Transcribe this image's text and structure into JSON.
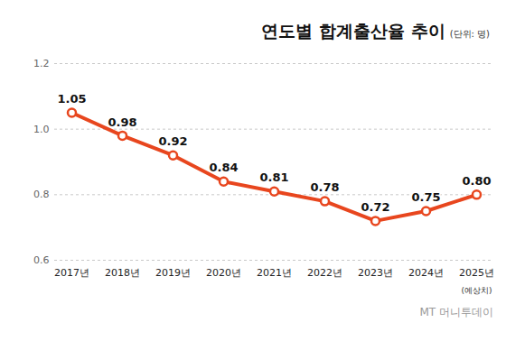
{
  "chart_data": {
    "type": "line",
    "title": "연도별 합계출산율 추이",
    "subtitle": "(단위: 명)",
    "categories": [
      "2017년",
      "2018년",
      "2019년",
      "2020년",
      "2021년",
      "2022년",
      "2023년",
      "2024년",
      "2025년"
    ],
    "values": [
      1.05,
      0.98,
      0.92,
      0.84,
      0.81,
      0.78,
      0.72,
      0.75,
      0.8
    ],
    "value_labels": [
      "1.05",
      "0.98",
      "0.92",
      "0.84",
      "0.81",
      "0.78",
      "0.72",
      "0.75",
      "0.80"
    ],
    "data_labels": true,
    "color": "#e8461e",
    "marker": "circle",
    "ylim": [
      0.6,
      1.2
    ],
    "yticks": [
      0.6,
      0.8,
      {
        "value": 1.0,
        "label": "1.0"
      },
      1.2
    ],
    "grid": true,
    "annotations": [
      {
        "text": "(예상치)",
        "x": "2025년"
      }
    ],
    "source": "MT 머니투데이"
  }
}
